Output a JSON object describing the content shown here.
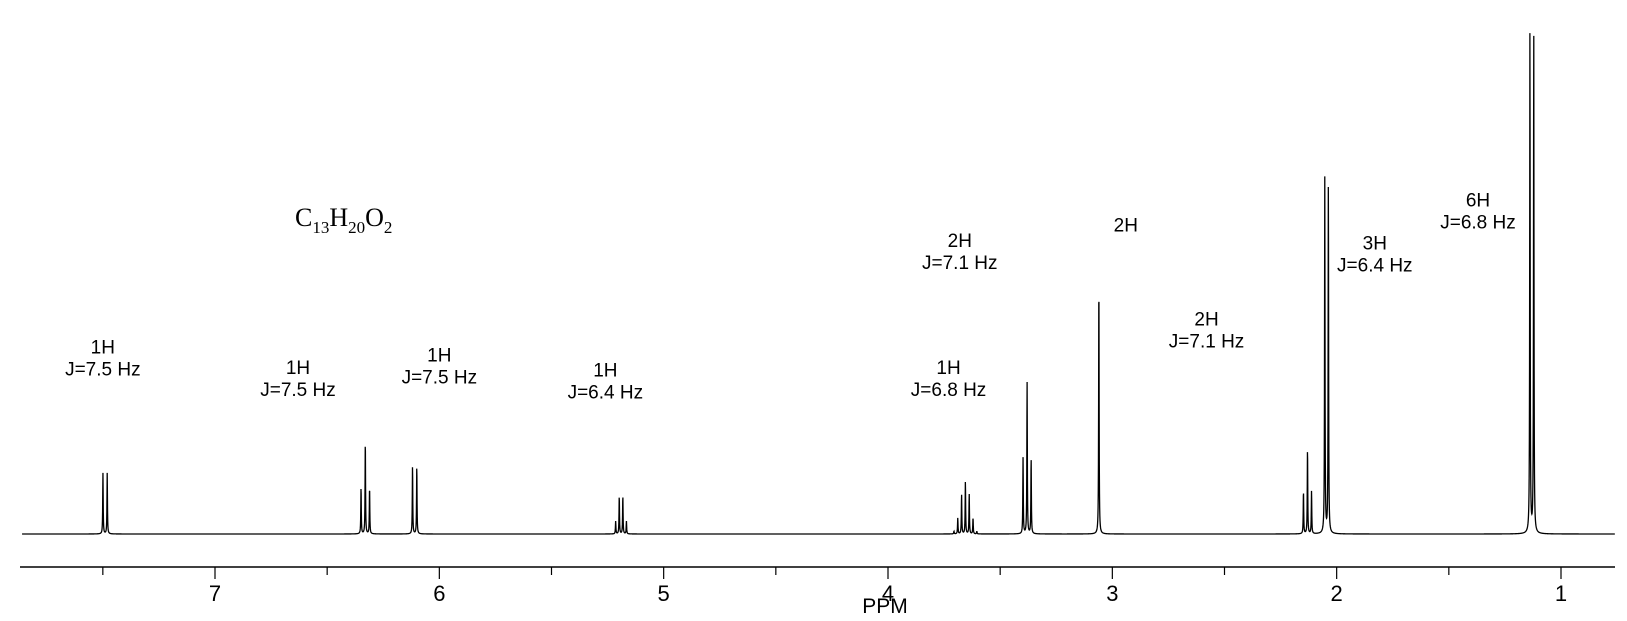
{
  "chart_data": {
    "type": "line",
    "title": "",
    "xlabel": "PPM",
    "ylabel": "",
    "x_reversed": true,
    "xlim": [
      7.86,
      0.76
    ],
    "ylim": [
      0,
      1.0
    ],
    "grid": false,
    "x_ticks": [
      7,
      6,
      5,
      4,
      3,
      2,
      1
    ],
    "x_tick_labels": [
      "7",
      "6",
      "5",
      "4",
      "3",
      "2",
      "1"
    ],
    "x_minor_step": 0.5,
    "formula": {
      "parts": [
        {
          "text": "C",
          "sub": false
        },
        {
          "text": "13",
          "sub": true
        },
        {
          "text": "H",
          "sub": false
        },
        {
          "text": "20",
          "sub": true
        },
        {
          "text": "O",
          "sub": false
        },
        {
          "text": "2",
          "sub": true
        }
      ]
    },
    "peaks": [
      {
        "ppm": 7.49,
        "intensity": 0.12,
        "mult": [
          1,
          1
        ],
        "j_ppm": 0.019,
        "integration": "1H",
        "j_label": "J=7.5 Hz",
        "label_ppm": 7.5,
        "label_y": 0.355
      },
      {
        "ppm": 6.33,
        "intensity": 0.185,
        "mult": [
          1,
          2,
          1
        ],
        "j_ppm": 0.019,
        "integration": "1H",
        "j_label": "J=7.5 Hz",
        "label_ppm": 6.63,
        "label_y": 0.315
      },
      {
        "ppm": 6.11,
        "intensity": 0.135,
        "mult": [
          1,
          1
        ],
        "j_ppm": 0.019,
        "integration": "1H",
        "j_label": "J=7.5 Hz",
        "label_ppm": 6.0,
        "label_y": 0.34
      },
      {
        "ppm": 5.19,
        "intensity": 0.075,
        "mult": [
          1,
          3,
          3,
          1
        ],
        "j_ppm": 0.016,
        "integration": "1H",
        "j_label": "J=6.4 Hz",
        "label_ppm": 5.26,
        "label_y": 0.31
      },
      {
        "ppm": 3.655,
        "intensity": 0.105,
        "mult": [
          1,
          6,
          15,
          20,
          15,
          6,
          1
        ],
        "j_ppm": 0.017,
        "integration": "1H",
        "j_label": "J=6.8 Hz",
        "label_ppm": 3.73,
        "label_y": 0.315
      },
      {
        "ppm": 3.38,
        "intensity": 0.3,
        "mult": [
          1,
          2,
          1
        ],
        "j_ppm": 0.018,
        "integration": "2H",
        "j_label": "J=7.1 Hz",
        "label_ppm": 3.68,
        "label_y": 0.565
      },
      {
        "ppm": 3.06,
        "intensity": 0.505,
        "mult": [
          1
        ],
        "j_ppm": 0.0,
        "integration": "2H",
        "j_label": "",
        "label_ppm": 2.94,
        "label_y": 0.595
      },
      {
        "ppm": 2.13,
        "intensity": 0.17,
        "mult": [
          1,
          2,
          1
        ],
        "j_ppm": 0.018,
        "integration": "2H",
        "j_label": "J=7.1 Hz",
        "label_ppm": 2.58,
        "label_y": 0.41
      },
      {
        "ppm": 2.045,
        "intensity": 0.7,
        "mult": [
          1,
          1
        ],
        "j_ppm": 0.016,
        "integration": "3H",
        "j_label": "J=6.4 Hz",
        "label_ppm": 1.83,
        "label_y": 0.56
      },
      {
        "ppm": 1.13,
        "intensity": 1.0,
        "mult": [
          1,
          1
        ],
        "j_ppm": 0.017,
        "integration": "6H",
        "j_label": "J=6.8 Hz",
        "label_ppm": 1.37,
        "label_y": 0.645
      }
    ]
  }
}
